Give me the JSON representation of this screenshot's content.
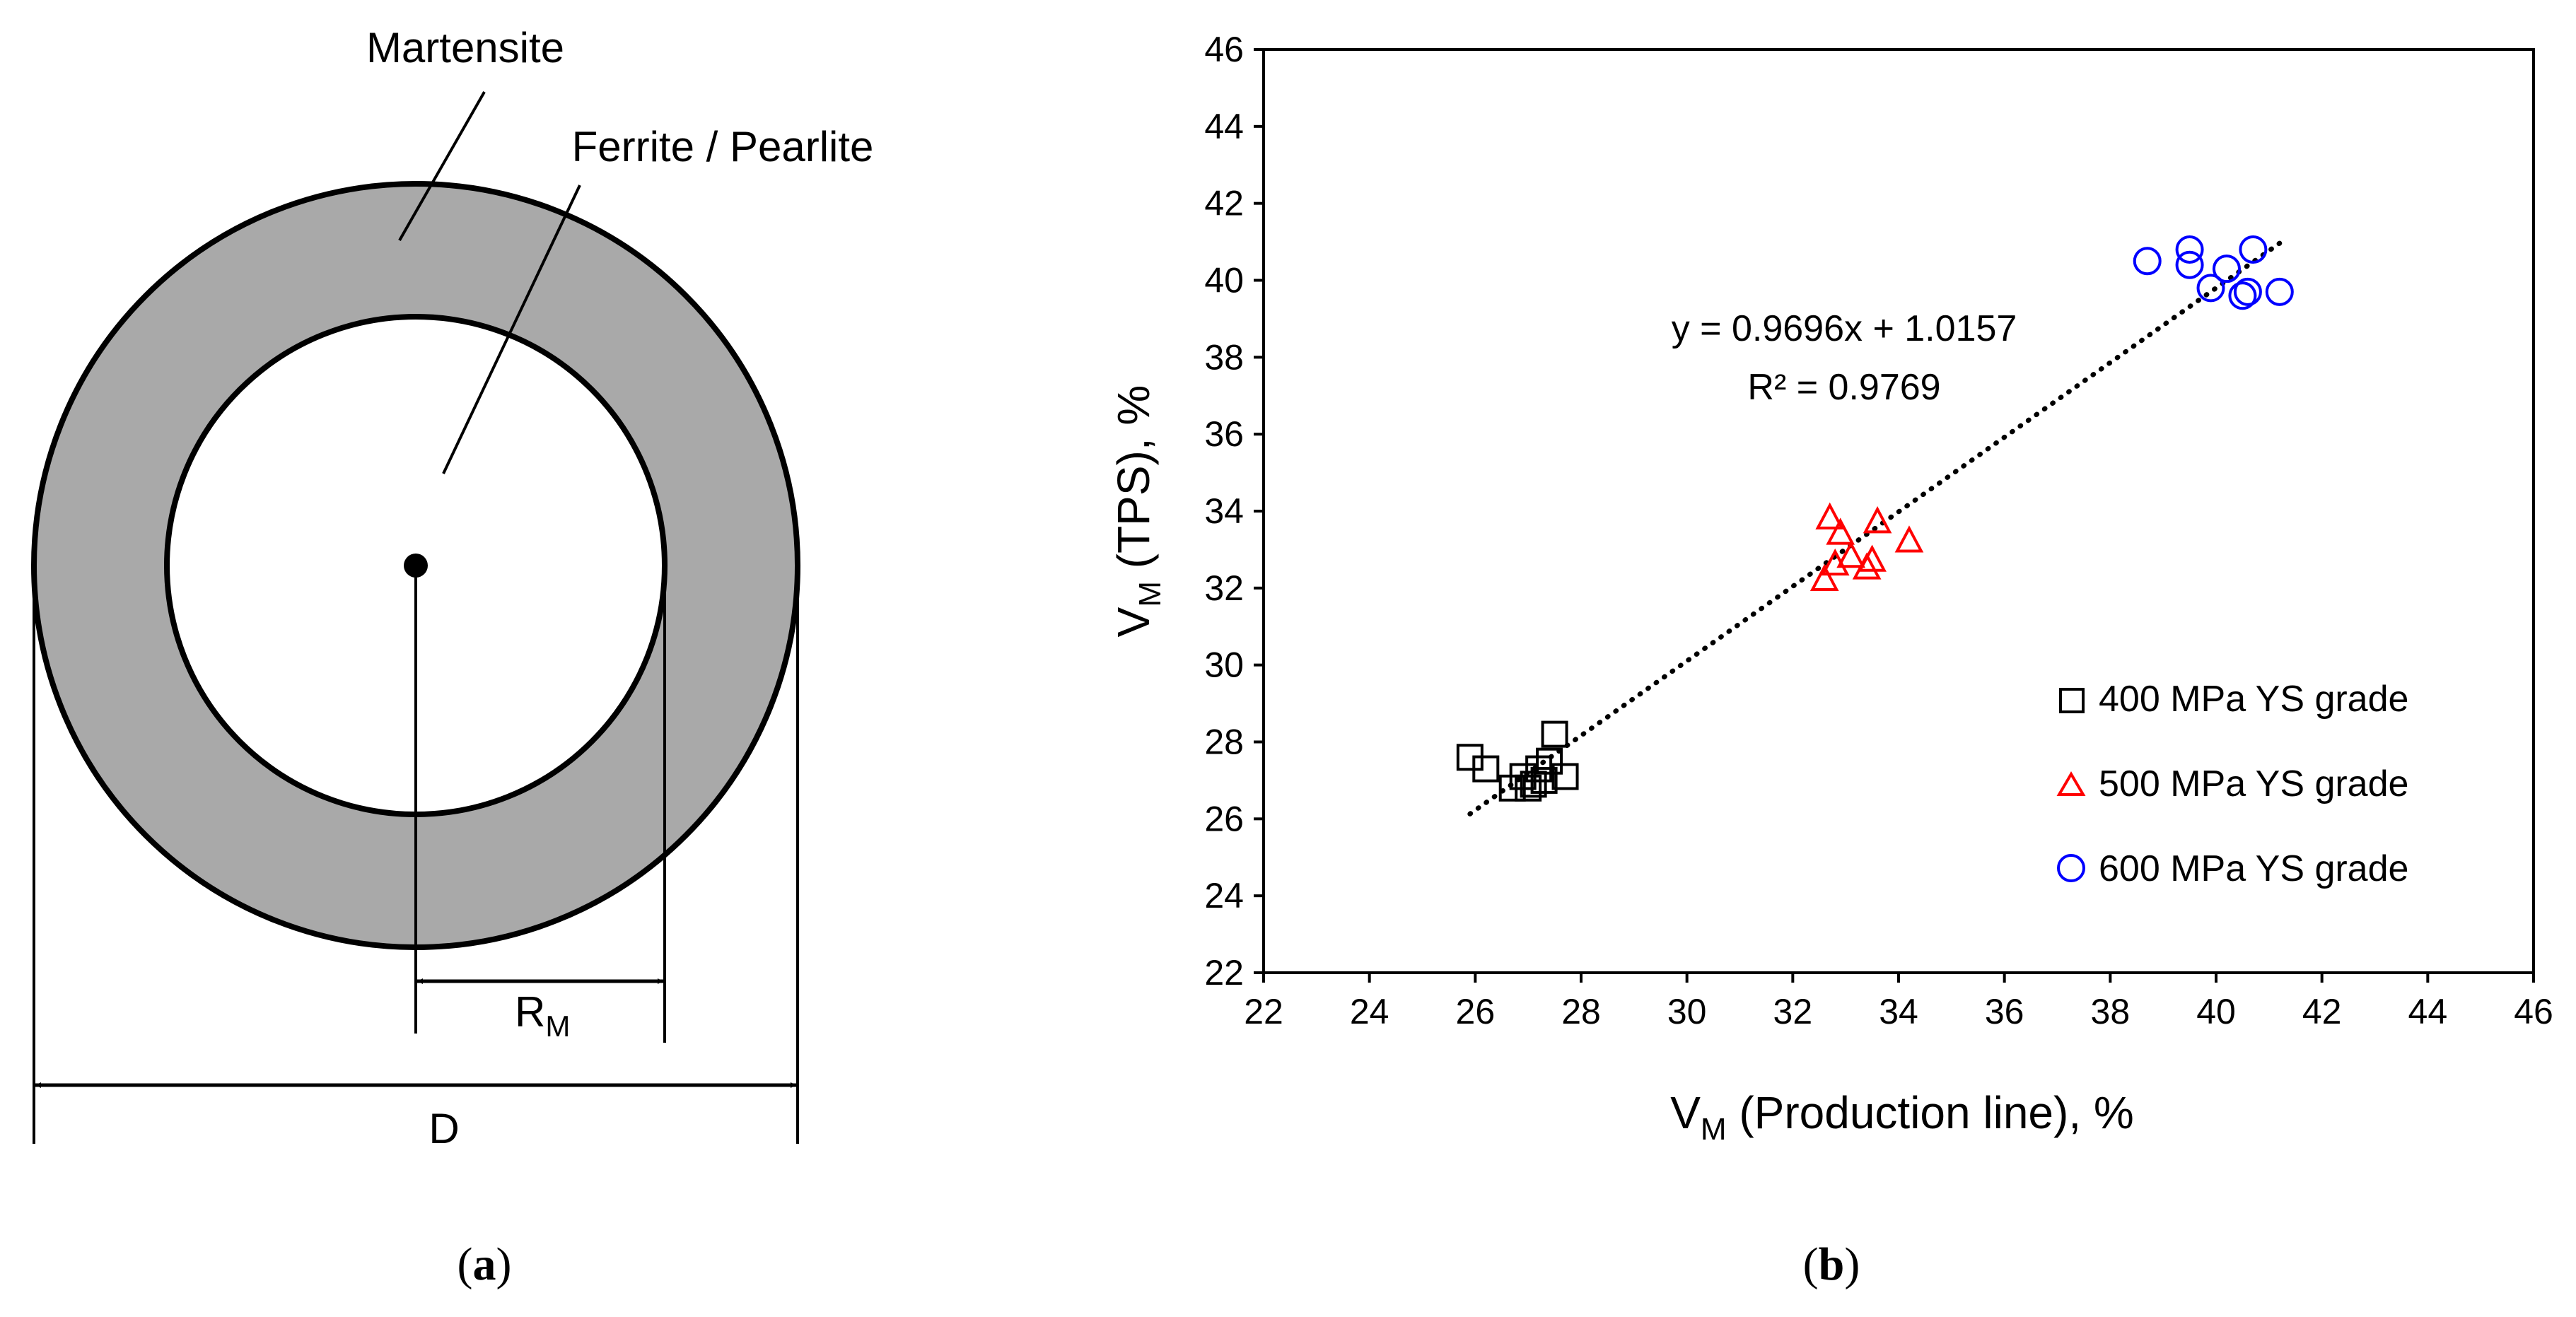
{
  "panel_a": {
    "label_martensite": "Martensite",
    "label_ferrite": "Ferrite / Pearlite",
    "radius_main": "R",
    "radius_sub": "M",
    "diameter": "D",
    "caption_open": "(",
    "caption_letter": "a",
    "caption_close": ")"
  },
  "panel_b": {
    "caption_open": "(",
    "caption_letter": "b",
    "caption_close": ")"
  },
  "colors": {
    "annulus": "#a9a9a9",
    "series_400": "#000000",
    "series_500": "#ff0000",
    "series_600": "#0000ff"
  },
  "chart_data": {
    "type": "scatter",
    "xlabel_main": "V",
    "xlabel_sub": "M",
    "xlabel_rest": " (Production line), %",
    "ylabel_main": "V",
    "ylabel_sub": "M",
    "ylabel_rest": " (TPS), %",
    "xlim": [
      22,
      46
    ],
    "ylim": [
      22,
      46
    ],
    "xticks": [
      22,
      24,
      26,
      28,
      30,
      32,
      34,
      36,
      38,
      40,
      42,
      44,
      46
    ],
    "yticks": [
      22,
      24,
      26,
      28,
      30,
      32,
      34,
      36,
      38,
      40,
      42,
      44,
      46
    ],
    "grid": false,
    "legend_position": "bottom-right",
    "equation": "y = 0.9696x + 1.0157",
    "r_squared": "R² = 0.9769",
    "trendline": {
      "slope": 0.9696,
      "intercept": 1.0157,
      "x_range": [
        25.9,
        41.2
      ]
    },
    "series": [
      {
        "name": "400 MPa YS grade",
        "marker": "square",
        "color": "#000000",
        "points": [
          [
            25.9,
            27.6
          ],
          [
            26.2,
            27.3
          ],
          [
            26.7,
            26.8
          ],
          [
            26.9,
            27.1
          ],
          [
            27.1,
            26.9
          ],
          [
            27.2,
            27.3
          ],
          [
            27.3,
            27.0
          ],
          [
            27.4,
            27.5
          ],
          [
            27.5,
            28.2
          ],
          [
            27.7,
            27.1
          ],
          [
            27.0,
            26.8
          ]
        ]
      },
      {
        "name": "500 MPa YS grade",
        "marker": "triangle",
        "color": "#ff0000",
        "points": [
          [
            32.6,
            32.2
          ],
          [
            32.7,
            33.8
          ],
          [
            32.8,
            32.6
          ],
          [
            32.9,
            33.4
          ],
          [
            33.1,
            32.8
          ],
          [
            33.4,
            32.5
          ],
          [
            33.5,
            32.7
          ],
          [
            33.6,
            33.7
          ],
          [
            34.2,
            33.2
          ]
        ]
      },
      {
        "name": "600 MPa YS grade",
        "marker": "circle",
        "color": "#0000ff",
        "points": [
          [
            38.7,
            40.5
          ],
          [
            39.5,
            40.8
          ],
          [
            39.5,
            40.4
          ],
          [
            39.9,
            39.8
          ],
          [
            40.2,
            40.3
          ],
          [
            40.5,
            39.6
          ],
          [
            40.6,
            39.7
          ],
          [
            40.7,
            40.8
          ],
          [
            41.2,
            39.7
          ]
        ]
      }
    ]
  }
}
